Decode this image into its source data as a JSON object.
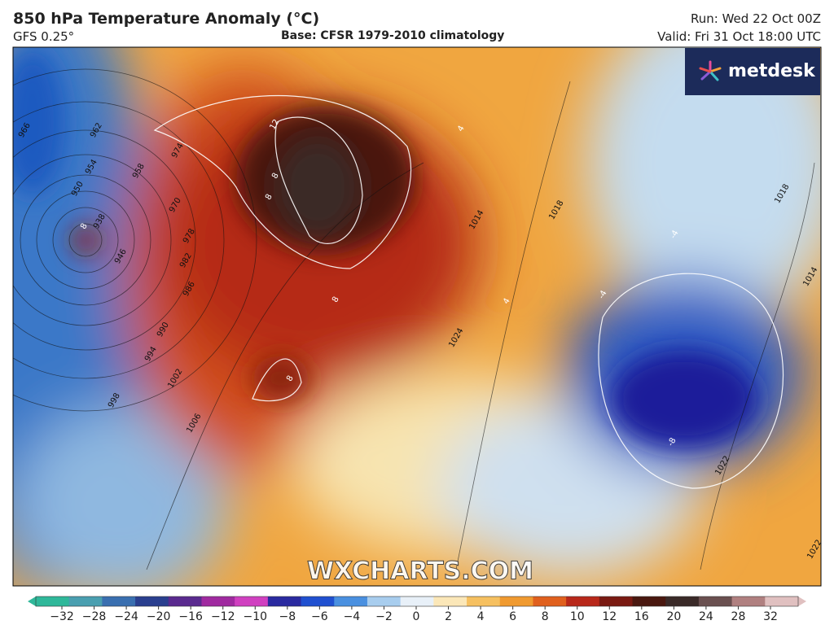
{
  "header": {
    "title": "850 hPa Temperature Anomaly (°C)",
    "model": "GFS 0.25°",
    "base": "Base: CFSR 1979-2010 climatology",
    "run": "Run: Wed 22 Oct 00Z",
    "valid": "Valid: Fri 31 Oct 18:00 UTC"
  },
  "logo": "metdesk",
  "watermark": "WXCHARTS.COM",
  "map_labels": [
    "966",
    "962",
    "954",
    "950",
    "938",
    "946",
    "974",
    "958",
    "970",
    "978",
    "982",
    "986",
    "990",
    "994",
    "998",
    "1002",
    "1006",
    "1014",
    "1018",
    "1022",
    "1024",
    "1018",
    "1014",
    "1022",
    "8",
    "8",
    "8",
    "12",
    "8",
    "8",
    "-4",
    "-4",
    "-8",
    "4",
    "4"
  ],
  "colorbar": {
    "ticks": [
      "−32",
      "−28",
      "−24",
      "−20",
      "−16",
      "−12",
      "−10",
      "−8",
      "−6",
      "−4",
      "−2",
      "0",
      "2",
      "4",
      "6",
      "8",
      "10",
      "12",
      "16",
      "20",
      "24",
      "28",
      "32"
    ]
  }
}
